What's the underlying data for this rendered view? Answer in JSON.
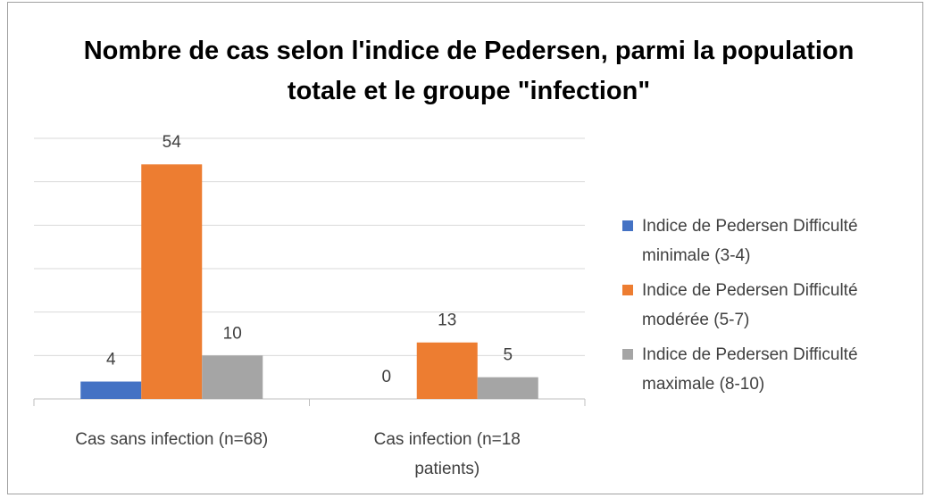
{
  "chart_data": {
    "type": "bar",
    "title": "Nombre de cas selon l'indice de Pedersen, parmi la population totale et le groupe \"infection\"",
    "categories": [
      "Cas sans infection (n=68)",
      "Cas infection (n=18 patients)"
    ],
    "series": [
      {
        "name": "Indice de Pedersen Difficulté minimale (3-4)",
        "color": "#4472c4",
        "values": [
          4,
          0
        ]
      },
      {
        "name": "Indice de Pedersen Difficulté modérée (5-7)",
        "color": "#ed7d31",
        "values": [
          54,
          13
        ]
      },
      {
        "name": "Indice de Pedersen Difficulté maximale (8-10)",
        "color": "#a5a5a5",
        "values": [
          10,
          5
        ]
      }
    ],
    "ylim": [
      0,
      60
    ],
    "yticks": [
      0,
      10,
      20,
      30,
      40,
      50,
      60
    ],
    "grid": true,
    "legend": "right"
  }
}
